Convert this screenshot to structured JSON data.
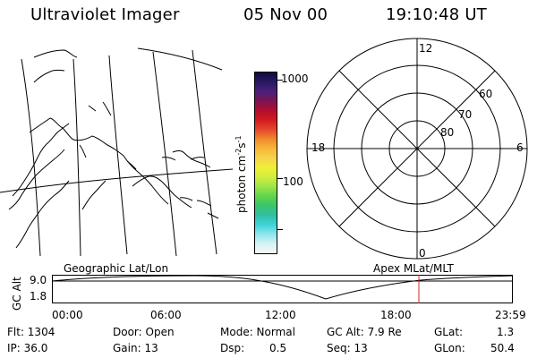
{
  "header": {
    "instrument": "Ultraviolet Imager",
    "date": "05 Nov 00",
    "time": "19:10:48 UT"
  },
  "colorbar": {
    "label_parts": [
      "photon cm",
      "-2",
      "s",
      "-1"
    ],
    "ticks": [
      "1000",
      "100"
    ],
    "colors": [
      "#0b0c3f",
      "#2a1761",
      "#4a1f7c",
      "#7b154f",
      "#b40d2f",
      "#d11b1f",
      "#e5472c",
      "#f08a2b",
      "#f6b73a",
      "#f7d44b",
      "#f0ef36",
      "#cfee3e",
      "#9de54a",
      "#5fd54b",
      "#3ac46b",
      "#31bfa4",
      "#3ed4d8",
      "#8ee6ea",
      "#d7f3f5",
      "#f7f7f7"
    ]
  },
  "polar_plot": {
    "top_label": "12",
    "bottom_label": "0",
    "left_label": "18",
    "right_label": "6",
    "ring_labels": [
      "60",
      "70",
      "80"
    ]
  },
  "bottom_panel": {
    "left_caption": "Geographic Lat/Lon",
    "right_caption": "Apex MLat/MLT",
    "y_axis_label": "GC Alt",
    "y_ticks": [
      "9.0",
      "1.8"
    ],
    "x_ticks": [
      "00:00",
      "06:00",
      "12:00",
      "18:00",
      "23:59"
    ]
  },
  "status": {
    "row1": {
      "flt": "Flt: 1304",
      "door": "Door: Open",
      "mode": "Mode: Normal",
      "gcalt": "GC Alt: 7.9 Re",
      "glat": "GLat:",
      "glat_val": "1.3"
    },
    "row2": {
      "ip": "IP: 36.0",
      "gain": "Gain: 13",
      "dsp": "Dsp:",
      "dsp_val": "0.5",
      "seq": "Seq: 13",
      "glon": "GLon:",
      "glon_val": "50.4"
    }
  },
  "colors": {
    "line": "#000000",
    "marker": "#d12a2a",
    "background": "#ffffff"
  }
}
